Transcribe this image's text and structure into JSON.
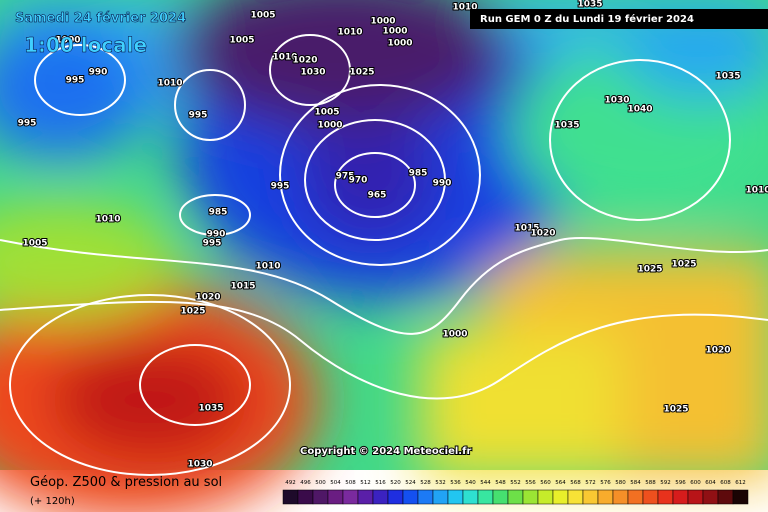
{
  "header": {
    "date": "Samedi 24 février 2024",
    "time": "1:00 locale",
    "run": "Run GEM 0 Z du Lundi 19 février 2024"
  },
  "copyright": "Copyright © 2024 Meteociel.fr",
  "footer": {
    "title": "Géop. Z500 & pression au sol",
    "lead": "(+ 120h)"
  },
  "isobar_labels": [
    1005,
    1000,
    990,
    995,
    995,
    1010,
    1005,
    1010,
    1000,
    1000,
    1000,
    1010,
    1020,
    1030,
    1025,
    1010,
    995,
    1005,
    1000,
    995,
    975,
    970,
    965,
    985,
    990,
    1010,
    1005,
    985,
    990,
    995,
    1010,
    1015,
    1020,
    1025,
    1035,
    1030,
    1035,
    1040,
    1030,
    1035,
    1025,
    1025,
    1020,
    1025,
    1000,
    1015,
    1020,
    1010,
    1035
  ],
  "legend": {
    "values": [
      492,
      496,
      500,
      504,
      508,
      512,
      516,
      520,
      524,
      528,
      532,
      536,
      540,
      544,
      548,
      552,
      556,
      560,
      564,
      568,
      572,
      576,
      580,
      584,
      588,
      592,
      596,
      600,
      604,
      608,
      612
    ],
    "colors": [
      "#1e0a2a",
      "#3a0b4a",
      "#4f1766",
      "#6a1d82",
      "#7a2a9e",
      "#5a1fa8",
      "#3b22c0",
      "#1f2ee0",
      "#1450f0",
      "#1c7af5",
      "#21a3f5",
      "#22c6f0",
      "#2ee0d0",
      "#38e6a0",
      "#46e070",
      "#6de048",
      "#9be534",
      "#c6ec2a",
      "#e8ef2a",
      "#f7e236",
      "#f9c832",
      "#f8ac2c",
      "#f58f28",
      "#f27022",
      "#ee501e",
      "#e8321c",
      "#d61c1c",
      "#b81418",
      "#901014",
      "#5e0a0c",
      "#1a0404"
    ]
  }
}
